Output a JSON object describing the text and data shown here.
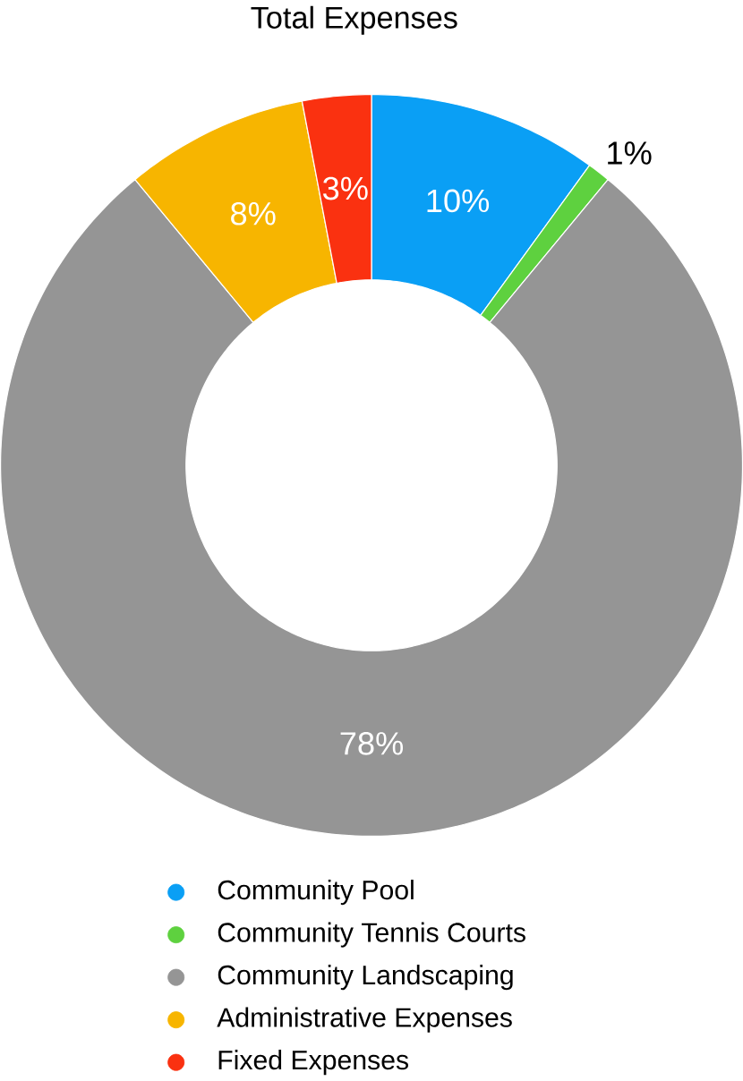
{
  "chart_data": {
    "type": "donut",
    "title": "Total Expenses",
    "categories": [
      "Community Pool",
      "Community Tennis Courts",
      "Community Landscaping",
      "Administrative Expenses",
      "Fixed Expenses"
    ],
    "values": [
      10,
      1,
      78,
      8,
      3
    ],
    "colors": [
      "#0a9ff5",
      "#5ed13f",
      "#959595",
      "#f7b500",
      "#fa3110"
    ],
    "value_labels": [
      "10%",
      "1%",
      "78%",
      "8%",
      "3%"
    ],
    "legend": "bottom"
  }
}
